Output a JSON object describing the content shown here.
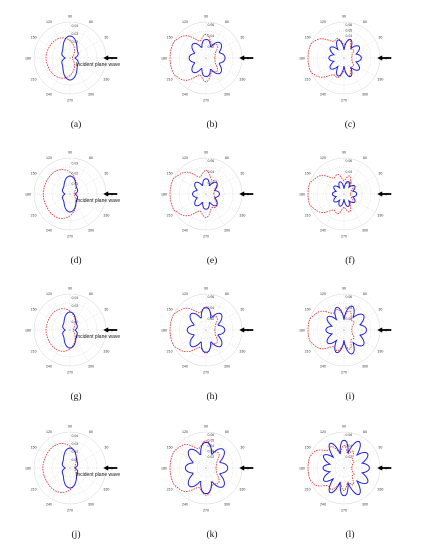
{
  "figure": {
    "angle_labels": [
      "90",
      "60",
      "30",
      "0",
      "330",
      "300",
      "270",
      "240",
      "210",
      "180",
      "150",
      "120"
    ],
    "incident_label": "Incident plane wave",
    "colors": {
      "dashed": "#e03030",
      "solid": "#1a1ad6",
      "grid": "#bdbdbd",
      "arrow": "#000000"
    }
  },
  "chart_data": [
    {
      "type": "polar",
      "label": "(a)",
      "rticks": [
        "0.04",
        "0.03",
        "0.02"
      ],
      "rmax": 0.045,
      "incident": true,
      "series": [
        {
          "style": "dashed",
          "color": "#e03030",
          "shape": "cardioid",
          "front": 0.003,
          "back": 0.03,
          "side": 0.018,
          "lobes": 0,
          "lobe_amp": 0
        },
        {
          "style": "solid",
          "color": "#1a1ad6",
          "shape": "figure-eight",
          "front": 0.006,
          "back": 0.006,
          "side": 0.022,
          "lobes": 0,
          "lobe_amp": 0
        }
      ]
    },
    {
      "type": "polar",
      "label": "(b)",
      "rticks": [
        "0.06",
        "0.04",
        "0.02"
      ],
      "rmax": 0.065,
      "incident": true,
      "series": [
        {
          "style": "dashed",
          "color": "#e03030",
          "shape": "forward-lobe",
          "front": 0.016,
          "back": 0.062,
          "side": 0.02,
          "lobes": 4,
          "lobe_amp": 0.35
        },
        {
          "style": "solid",
          "color": "#1a1ad6",
          "shape": "multi-lobe",
          "front": 0.018,
          "back": 0.014,
          "side": 0.03,
          "lobes": 4,
          "lobe_amp": 0.55
        }
      ]
    },
    {
      "type": "polar",
      "label": "(c)",
      "rticks": [
        "0.06",
        "0.05",
        "0.04"
      ],
      "rmax": 0.065,
      "incident": true,
      "series": [
        {
          "style": "dashed",
          "color": "#e03030",
          "shape": "forward-lobe",
          "front": 0.014,
          "back": 0.06,
          "side": 0.016,
          "lobes": 5,
          "lobe_amp": 0.35
        },
        {
          "style": "solid",
          "color": "#1a1ad6",
          "shape": "multi-lobe",
          "front": 0.016,
          "back": 0.012,
          "side": 0.028,
          "lobes": 5,
          "lobe_amp": 0.6
        }
      ]
    },
    {
      "type": "polar",
      "label": "(d)",
      "rticks": [
        "0.03",
        "0.02",
        "0.01"
      ],
      "rmax": 0.035,
      "incident": true,
      "series": [
        {
          "style": "dashed",
          "color": "#e03030",
          "shape": "cardioid",
          "front": 0.004,
          "back": 0.026,
          "side": 0.018,
          "lobes": 0,
          "lobe_amp": 0
        },
        {
          "style": "solid",
          "color": "#1a1ad6",
          "shape": "figure-eight",
          "front": 0.005,
          "back": 0.005,
          "side": 0.014,
          "lobes": 0,
          "lobe_amp": 0
        }
      ]
    },
    {
      "type": "polar",
      "label": "(e)",
      "rticks": [
        "0.06",
        "0.04",
        "0.02"
      ],
      "rmax": 0.065,
      "incident": true,
      "series": [
        {
          "style": "dashed",
          "color": "#e03030",
          "shape": "forward-lobe",
          "front": 0.014,
          "back": 0.062,
          "side": 0.022,
          "lobes": 4,
          "lobe_amp": 0.3
        },
        {
          "style": "solid",
          "color": "#1a1ad6",
          "shape": "multi-lobe",
          "front": 0.01,
          "back": 0.01,
          "side": 0.026,
          "lobes": 4,
          "lobe_amp": 0.5
        }
      ]
    },
    {
      "type": "polar",
      "label": "(f)",
      "rticks": [
        "0.06",
        "0.04",
        "0.02"
      ],
      "rmax": 0.065,
      "incident": true,
      "series": [
        {
          "style": "dashed",
          "color": "#e03030",
          "shape": "forward-lobe",
          "front": 0.012,
          "back": 0.058,
          "side": 0.018,
          "lobes": 5,
          "lobe_amp": 0.35
        },
        {
          "style": "solid",
          "color": "#1a1ad6",
          "shape": "multi-lobe",
          "front": 0.012,
          "back": 0.01,
          "side": 0.02,
          "lobes": 5,
          "lobe_amp": 0.5
        }
      ]
    },
    {
      "type": "polar",
      "label": "(g)",
      "rticks": [
        "0.04",
        "0.03",
        "0.01"
      ],
      "rmax": 0.045,
      "incident": true,
      "series": [
        {
          "style": "dashed",
          "color": "#e03030",
          "shape": "cardioid",
          "front": 0.004,
          "back": 0.03,
          "side": 0.02,
          "lobes": 0,
          "lobe_amp": 0
        },
        {
          "style": "solid",
          "color": "#1a1ad6",
          "shape": "figure-eight",
          "front": 0.006,
          "back": 0.006,
          "side": 0.018,
          "lobes": 0,
          "lobe_amp": 0
        }
      ]
    },
    {
      "type": "polar",
      "label": "(h)",
      "rticks": [
        "0.06",
        "0.04",
        "0.02"
      ],
      "rmax": 0.065,
      "incident": true,
      "series": [
        {
          "style": "dashed",
          "color": "#e03030",
          "shape": "forward-lobe",
          "front": 0.016,
          "back": 0.06,
          "side": 0.02,
          "lobes": 4,
          "lobe_amp": 0.3
        },
        {
          "style": "solid",
          "color": "#1a1ad6",
          "shape": "multi-lobe",
          "front": 0.012,
          "back": 0.012,
          "side": 0.04,
          "lobes": 4,
          "lobe_amp": 0.45
        }
      ]
    },
    {
      "type": "polar",
      "label": "(i)",
      "rticks": [
        "0.06",
        "0.04",
        "0.02"
      ],
      "rmax": 0.065,
      "incident": true,
      "series": [
        {
          "style": "dashed",
          "color": "#e03030",
          "shape": "forward-lobe",
          "front": 0.014,
          "back": 0.056,
          "side": 0.018,
          "lobes": 5,
          "lobe_amp": 0.35
        },
        {
          "style": "solid",
          "color": "#1a1ad6",
          "shape": "multi-lobe",
          "front": 0.022,
          "back": 0.014,
          "side": 0.034,
          "lobes": 5,
          "lobe_amp": 0.65
        }
      ]
    },
    {
      "type": "polar",
      "label": "(j)",
      "rticks": [
        "0.04",
        "0.03",
        "0.02",
        "0.01"
      ],
      "rmax": 0.045,
      "incident": true,
      "series": [
        {
          "style": "dashed",
          "color": "#e03030",
          "shape": "cardioid",
          "front": 0.006,
          "back": 0.034,
          "side": 0.022,
          "lobes": 0,
          "lobe_amp": 0
        },
        {
          "style": "solid",
          "color": "#1a1ad6",
          "shape": "figure-eight",
          "front": 0.006,
          "back": 0.006,
          "side": 0.02,
          "lobes": 0,
          "lobe_amp": 0
        }
      ]
    },
    {
      "type": "polar",
      "label": "(k)",
      "rticks": [
        "0.06",
        "0.05",
        "0.04",
        "0.03",
        "0.02"
      ],
      "rmax": 0.065,
      "incident": true,
      "series": [
        {
          "style": "dashed",
          "color": "#e03030",
          "shape": "forward-lobe",
          "front": 0.018,
          "back": 0.058,
          "side": 0.024,
          "lobes": 4,
          "lobe_amp": 0.3
        },
        {
          "style": "solid",
          "color": "#1a1ad6",
          "shape": "multi-lobe",
          "front": 0.014,
          "back": 0.012,
          "side": 0.046,
          "lobes": 4,
          "lobe_amp": 0.45
        }
      ]
    },
    {
      "type": "polar",
      "label": "(l)",
      "rticks": [
        "0.06",
        "0.04",
        "0.02"
      ],
      "rmax": 0.065,
      "incident": true,
      "series": [
        {
          "style": "dashed",
          "color": "#e03030",
          "shape": "forward-lobe",
          "front": 0.014,
          "back": 0.056,
          "side": 0.02,
          "lobes": 6,
          "lobe_amp": 0.35
        },
        {
          "style": "solid",
          "color": "#1a1ad6",
          "shape": "multi-lobe",
          "front": 0.024,
          "back": 0.016,
          "side": 0.04,
          "lobes": 6,
          "lobe_amp": 0.7
        }
      ]
    }
  ]
}
